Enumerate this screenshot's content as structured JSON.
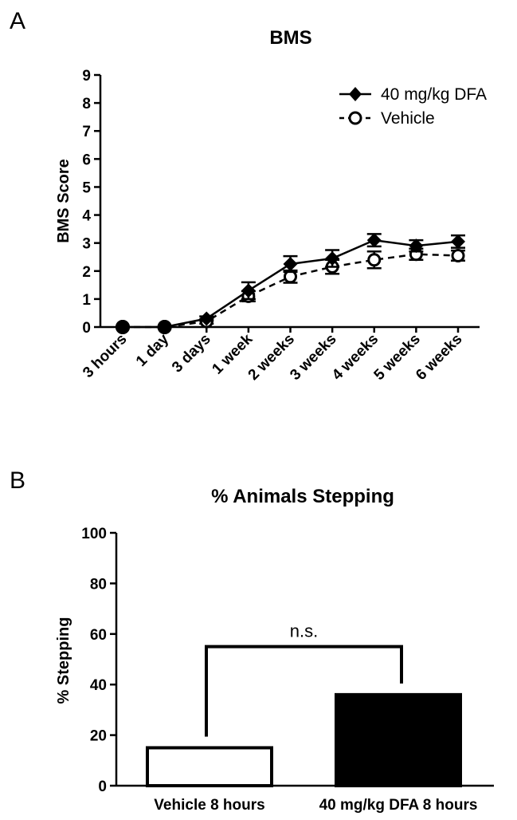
{
  "figure": {
    "panel_a_letter": "A",
    "panel_b_letter": "B"
  },
  "chart_data": [
    {
      "type": "line",
      "title": "BMS",
      "xlabel": "",
      "ylabel": "BMS Score",
      "ylim": [
        0,
        9
      ],
      "yticks": [
        "0",
        "1",
        "2",
        "3",
        "4",
        "5",
        "6",
        "7",
        "8",
        "9"
      ],
      "categories": [
        "3 hours",
        "1 day",
        "3 days",
        "1 week",
        "2 weeks",
        "3 weeks",
        "4 weeks",
        "5 weeks",
        "6 weeks"
      ],
      "legend_position": "top-right",
      "grid": false,
      "series": [
        {
          "name": "40 mg/kg DFA",
          "values": [
            0,
            0,
            0.3,
            1.3,
            2.25,
            2.45,
            3.1,
            2.9,
            3.05
          ],
          "errors": [
            0,
            0,
            0.08,
            0.3,
            0.28,
            0.3,
            0.22,
            0.2,
            0.22
          ],
          "line_style": "solid",
          "marker": "filled-diamond",
          "color": "#000000"
        },
        {
          "name": "Vehicle",
          "values": [
            0,
            0,
            0.2,
            1.1,
            1.8,
            2.15,
            2.4,
            2.6,
            2.55
          ],
          "errors": [
            0,
            0,
            0.08,
            0.18,
            0.22,
            0.25,
            0.3,
            0.2,
            0.18
          ],
          "line_style": "dashed",
          "marker": "open-circle",
          "color": "#000000"
        }
      ]
    },
    {
      "type": "bar",
      "title": "% Animals Stepping",
      "xlabel": "",
      "ylabel": "% Stepping",
      "ylim": [
        0,
        100
      ],
      "yticks": [
        "0",
        "20",
        "40",
        "60",
        "80",
        "100"
      ],
      "categories": [
        "Vehicle 8 hours",
        "40 mg/kg DFA 8 hours"
      ],
      "values": [
        15,
        36
      ],
      "fills": [
        "#ffffff",
        "#000000"
      ],
      "significance": {
        "label": "n.s.",
        "bracket_height": 55
      }
    }
  ]
}
